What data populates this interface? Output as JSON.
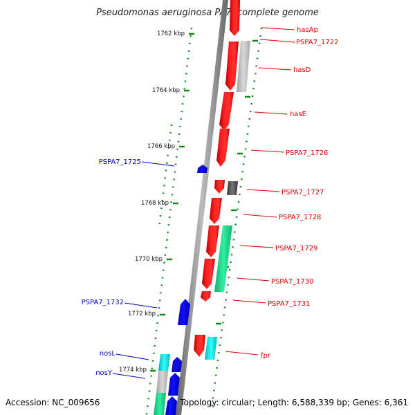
{
  "title": "Pseudomonas aeruginosa PA7, complete genome",
  "footer": {
    "accession": "Accession: NC_009656",
    "topology": "Topology: circular; Length: 6,588,339 bp; Genes: 6,361"
  },
  "ruler": [
    {
      "label": "1762 kbp"
    },
    {
      "label": "1764 kbp"
    },
    {
      "label": "1766 kbp"
    },
    {
      "label": "1768 kbp"
    },
    {
      "label": "1770 kbp"
    },
    {
      "label": "1772 kbp"
    },
    {
      "label": "1774 kbp"
    }
  ],
  "genes_right": [
    {
      "label": "hasAp"
    },
    {
      "label": "PSPA7_1722"
    },
    {
      "label": "hasD"
    },
    {
      "label": "hasE"
    },
    {
      "label": "PSPA7_1726"
    },
    {
      "label": "PSPA7_1727"
    },
    {
      "label": "PSPA7_1728"
    },
    {
      "label": "PSPA7_1729"
    },
    {
      "label": "PSPA7_1730"
    },
    {
      "label": "PSPA7_1731"
    },
    {
      "label": "fpr"
    }
  ],
  "genes_left": [
    {
      "label": "PSPA7_1725"
    },
    {
      "label": "PSPA7_1732"
    },
    {
      "label": "nosL"
    },
    {
      "label": "nosY"
    }
  ],
  "colors": {
    "forward_gene": "#ff0000",
    "reverse_gene": "#0000ee",
    "other_feature_gray": "#bfbfbf",
    "other_feature_dark": "#555555",
    "other_feature_green": "#22dd88",
    "other_feature_cyan": "#00e5e5",
    "backbone": "#888888",
    "ruler_ticks": "#118811",
    "forward_label": "#e00000",
    "reverse_label": "#0000c0"
  }
}
